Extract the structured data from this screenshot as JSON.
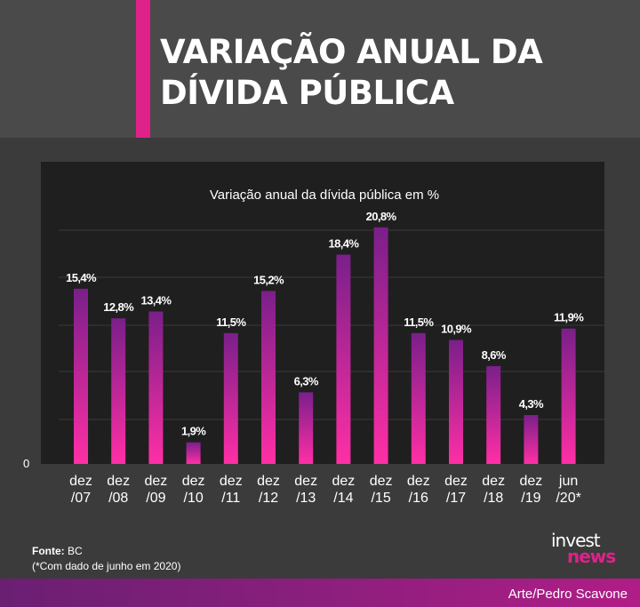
{
  "header": {
    "title_line1": "VARIAÇÃO ANUAL DA",
    "title_line2": "DÍVIDA PÚBLICA"
  },
  "colors": {
    "accent": "#e0218a",
    "bar_top": "#7a1f8a",
    "bar_bottom": "#ff2fa5",
    "panel": "#1f1f1f",
    "background": "#3b3b3b"
  },
  "chart_data": {
    "type": "bar",
    "title": "Variação anual da dívida pública em %",
    "categories": [
      [
        "dez",
        "/07"
      ],
      [
        "dez",
        "/08"
      ],
      [
        "dez",
        "/09"
      ],
      [
        "dez",
        "/10"
      ],
      [
        "dez",
        "/11"
      ],
      [
        "dez",
        "/12"
      ],
      [
        "dez",
        "/13"
      ],
      [
        "dez",
        "/14"
      ],
      [
        "dez",
        "/15"
      ],
      [
        "dez",
        "/16"
      ],
      [
        "dez",
        "/17"
      ],
      [
        "dez",
        "/18"
      ],
      [
        "dez",
        "/19"
      ],
      [
        "jun",
        "/20*"
      ]
    ],
    "values": [
      15.4,
      12.8,
      13.4,
      1.9,
      11.5,
      15.2,
      6.3,
      18.4,
      20.8,
      11.5,
      10.9,
      8.6,
      4.3,
      11.9
    ],
    "labels": [
      "15,4%",
      "12,8%",
      "13,4%",
      "1,9%",
      "11,5%",
      "15,2%",
      "6,3%",
      "18,4%",
      "20,8%",
      "11,5%",
      "10,9%",
      "8,6%",
      "4,3%",
      "11,9%"
    ],
    "y_tick_label": "0",
    "ylim": [
      0,
      26
    ],
    "grid": true,
    "legend": "none"
  },
  "footer": {
    "source_label": "Fonte:",
    "source_value": " BC",
    "note": "(*Com dado de junho em 2020)",
    "credit": "Arte/Pedro Scavone",
    "logo_top": "invest",
    "logo_bottom": "news"
  }
}
